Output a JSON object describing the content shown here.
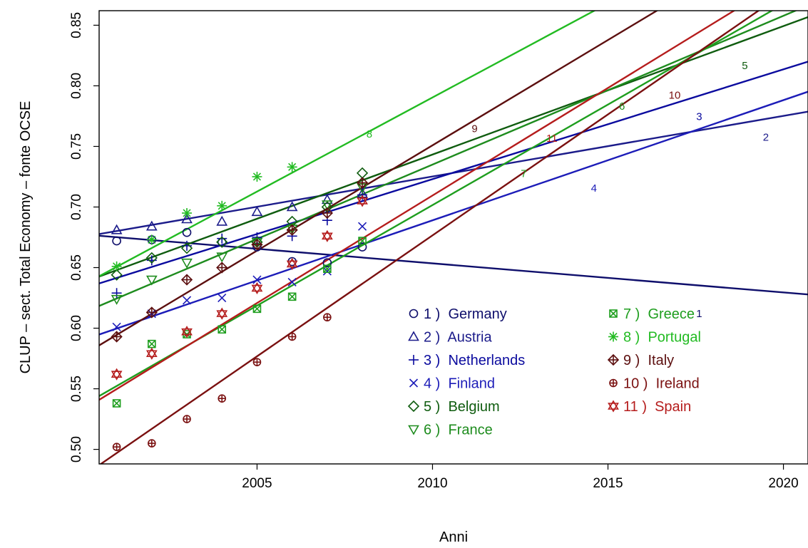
{
  "chart_data": {
    "type": "scatter",
    "title": "",
    "xlabel": "Anni",
    "ylabel": "CLUP – sect. Total Economy  – fonte OCSE",
    "xlim": [
      2000.5,
      2020.7
    ],
    "ylim": [
      0.488,
      0.862
    ],
    "x_ticks": [
      2005,
      2010,
      2015,
      2020
    ],
    "y_ticks": [
      0.5,
      0.55,
      0.6,
      0.65,
      0.7,
      0.75,
      0.8,
      0.85
    ],
    "x_tick_labels": [
      "2005",
      "2010",
      "2015",
      "2020"
    ],
    "y_tick_labels": [
      "0.50",
      "0.55",
      "0.60",
      "0.65",
      "0.70",
      "0.75",
      "0.80",
      "0.85"
    ],
    "grid": false,
    "legend_position": "bottom-center",
    "series": [
      {
        "id": "1",
        "name": "Germany",
        "legend_label": "1 )  Germany",
        "color": "#0e0e6b",
        "marker": "circle",
        "x": [
          2001,
          2002,
          2003,
          2004,
          2005,
          2006,
          2007,
          2008
        ],
        "y": [
          0.672,
          0.673,
          0.679,
          0.671,
          0.667,
          0.655,
          0.654,
          0.667
        ],
        "fit": [
          0.6775,
          -0.0024
        ],
        "line_label_x": 2017.6
      },
      {
        "id": "2",
        "name": "Austria",
        "legend_label": "2 )  Austria",
        "color": "#1b1b8a",
        "marker": "triangle",
        "x": [
          2001,
          2002,
          2003,
          2004,
          2005,
          2006,
          2007,
          2008
        ],
        "y": [
          0.681,
          0.684,
          0.69,
          0.688,
          0.696,
          0.7,
          0.706,
          0.711
        ],
        "fit": [
          0.6752,
          0.005
        ],
        "line_label_x": 2019.5
      },
      {
        "id": "3",
        "name": "Netherlands",
        "legend_label": "3 )  Netherlands",
        "color": "#0a0a9e",
        "marker": "plus",
        "x": [
          2001,
          2002,
          2003,
          2004,
          2005,
          2006,
          2007,
          2008
        ],
        "y": [
          0.629,
          0.656,
          0.668,
          0.674,
          0.675,
          0.676,
          0.689,
          0.71
        ],
        "fit": [
          0.6324,
          0.00906
        ],
        "line_label_x": 2017.6
      },
      {
        "id": "4",
        "name": "Finland",
        "legend_label": "4 )  Finland",
        "color": "#1c1cb8",
        "marker": "cross",
        "x": [
          2001,
          2002,
          2003,
          2004,
          2005,
          2006,
          2007,
          2008
        ],
        "y": [
          0.601,
          0.612,
          0.623,
          0.625,
          0.64,
          0.638,
          0.647,
          0.684
        ],
        "fit": [
          0.5898,
          0.00992
        ],
        "line_label_x": 2014.6
      },
      {
        "id": "5",
        "name": "Belgium",
        "legend_label": "5 )  Belgium",
        "color": "#0f5c0f",
        "marker": "diamond",
        "x": [
          2001,
          2002,
          2003,
          2004,
          2005,
          2006,
          2007,
          2008
        ],
        "y": [
          0.644,
          0.658,
          0.666,
          0.671,
          0.671,
          0.688,
          0.7,
          0.728
        ],
        "fit": [
          0.6373,
          0.0106
        ],
        "line_label_x": 2018.9
      },
      {
        "id": "6",
        "name": "France",
        "legend_label": "6 )  France",
        "color": "#1e8c1e",
        "marker": "triangle-down",
        "x": [
          2001,
          2002,
          2003,
          2004,
          2005,
          2006,
          2007,
          2008
        ],
        "y": [
          0.624,
          0.64,
          0.654,
          0.659,
          0.671,
          0.682,
          0.702,
          0.716
        ],
        "fit": [
          0.6122,
          0.01228
        ],
        "line_label_x": 2015.4
      },
      {
        "id": "7",
        "name": "Greece",
        "legend_label": "7 )  Greece",
        "color": "#1e9e1e",
        "marker": "boxed-x",
        "x": [
          2001,
          2002,
          2003,
          2004,
          2005,
          2006,
          2007,
          2008
        ],
        "y": [
          0.538,
          0.587,
          0.595,
          0.599,
          0.616,
          0.626,
          0.649,
          0.672
        ],
        "fit": [
          0.5357,
          0.01659
        ],
        "line_label_x": 2012.6
      },
      {
        "id": "8",
        "name": "Portugal",
        "legend_label": "8 )  Portugal",
        "color": "#22bb22",
        "marker": "asterisk",
        "x": [
          2001,
          2002,
          2003,
          2004,
          2005,
          2006
        ],
        "y": [
          0.651,
          0.673,
          0.695,
          0.701,
          0.725,
          0.733
        ],
        "fit": [
          0.6351,
          0.01553
        ],
        "line_label_x": 2008.2
      },
      {
        "id": "9",
        "name": "Italy",
        "legend_label": "9 )  Italy",
        "color": "#5c0f0f",
        "marker": "diamond-plus",
        "x": [
          2001,
          2002,
          2003,
          2004,
          2005,
          2006,
          2007,
          2008
        ],
        "y": [
          0.593,
          0.613,
          0.64,
          0.65,
          0.669,
          0.681,
          0.695,
          0.72
        ],
        "fit": [
          0.5771,
          0.01738
        ],
        "line_label_x": 2011.2
      },
      {
        "id": "10",
        "name": "Ireland",
        "legend_label": "10 )  Ireland",
        "color": "#7a1010",
        "marker": "circle-plus",
        "x": [
          2001,
          2002,
          2003,
          2004,
          2005,
          2006,
          2007
        ],
        "y": [
          0.502,
          0.505,
          0.525,
          0.542,
          0.572,
          0.593,
          0.609
        ],
        "fit": [
          0.477,
          0.01996
        ],
        "line_label_x": 2016.9
      },
      {
        "id": "11",
        "name": "Spain",
        "legend_label": "11 )  Spain",
        "color": "#b51c1c",
        "marker": "star-of-david",
        "x": [
          2001,
          2002,
          2003,
          2004,
          2005,
          2006,
          2007,
          2008
        ],
        "y": [
          0.562,
          0.579,
          0.597,
          0.612,
          0.633,
          0.653,
          0.676,
          0.705
        ],
        "fit": [
          0.532,
          0.01775
        ],
        "line_label_x": 2013.4
      }
    ],
    "line_label_offsets": {
      "1": -0.026,
      "2": -0.018,
      "3": -0.02,
      "4": -0.022,
      "5": -0.024,
      "6": -0.021,
      "7": -0.02,
      "8": -0.005,
      "9": -0.01,
      "10": -0.025,
      "11": -0.016
    },
    "legend": {
      "columns": [
        [
          "1",
          "2",
          "3",
          "4",
          "5",
          "6"
        ],
        [
          "7",
          "8",
          "9",
          "10",
          "11"
        ]
      ]
    }
  }
}
